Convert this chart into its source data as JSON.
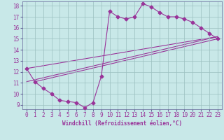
{
  "xlabel": "Windchill (Refroidissement éolien,°C)",
  "background_color": "#c8e8e8",
  "grid_color": "#9bbfbf",
  "line_color": "#993399",
  "xlim": [
    -0.5,
    23.5
  ],
  "ylim": [
    8.6,
    18.4
  ],
  "yticks": [
    9,
    10,
    11,
    12,
    13,
    14,
    15,
    16,
    17,
    18
  ],
  "xticks": [
    0,
    1,
    2,
    3,
    4,
    5,
    6,
    7,
    8,
    9,
    10,
    11,
    12,
    13,
    14,
    15,
    16,
    17,
    18,
    19,
    20,
    21,
    22,
    23
  ],
  "line1_x": [
    0,
    1,
    2,
    3,
    4,
    5,
    6,
    7,
    8,
    9,
    10,
    11,
    12,
    13,
    14,
    15,
    16,
    17,
    18,
    19,
    20,
    21,
    22,
    23
  ],
  "line1_y": [
    12.3,
    11.1,
    10.5,
    10.0,
    9.4,
    9.3,
    9.2,
    8.75,
    9.2,
    11.6,
    17.5,
    17.0,
    16.8,
    17.0,
    18.2,
    17.9,
    17.4,
    17.0,
    17.0,
    16.8,
    16.5,
    16.0,
    15.5,
    15.0
  ],
  "line2_x": [
    0,
    23
  ],
  "line2_y": [
    12.3,
    15.2
  ],
  "line3_x": [
    1,
    23
  ],
  "line3_y": [
    11.1,
    15.0
  ],
  "line4_x": [
    0,
    23
  ],
  "line4_y": [
    11.1,
    15.2
  ],
  "marker": "D",
  "markersize": 2.5,
  "linewidth": 0.8,
  "tick_fontsize": 5.5,
  "xlabel_fontsize": 5.5
}
